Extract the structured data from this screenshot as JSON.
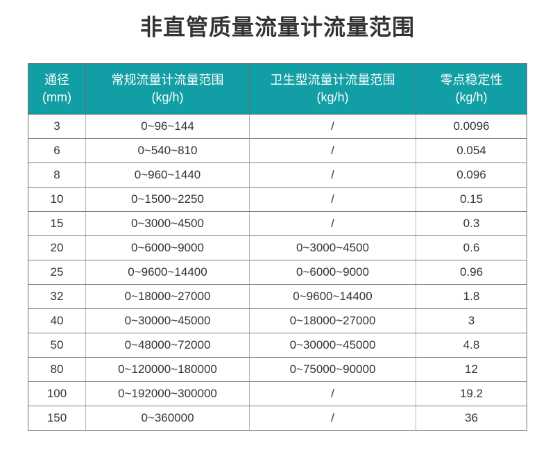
{
  "colors": {
    "header_bg": "#119EA4",
    "header_text": "#FFFFFF",
    "cell_text": "#333333",
    "title_text": "#333333",
    "border_dark": "#6E6E6E",
    "border_horizontal": "#7D7D7D",
    "border_vertical": "#B3B3B3",
    "page_bg": "#FFFFFF"
  },
  "chart_data": {
    "type": "table",
    "title": "非直管质量流量计流量范围",
    "columns": [
      {
        "line1": "通径",
        "line2": "(mm)"
      },
      {
        "line1": "常规流量计流量范围",
        "line2": "(kg/h)"
      },
      {
        "line1": "卫生型流量计流量范围",
        "line2": "(kg/h)"
      },
      {
        "line1": "零点稳定性",
        "line2": "(kg/h)"
      }
    ],
    "column_keys": [
      "diameter-mm",
      "standard-flow-range",
      "sanitary-flow-range",
      "zero-stability"
    ],
    "rows": [
      [
        "3",
        "0~96~144",
        "/",
        "0.0096"
      ],
      [
        "6",
        "0~540~810",
        "/",
        "0.054"
      ],
      [
        "8",
        "0~960~1440",
        "/",
        "0.096"
      ],
      [
        "10",
        "0~1500~2250",
        "/",
        "0.15"
      ],
      [
        "15",
        "0~3000~4500",
        "/",
        "0.3"
      ],
      [
        "20",
        "0~6000~9000",
        "0~3000~4500",
        "0.6"
      ],
      [
        "25",
        "0~9600~14400",
        "0~6000~9000",
        "0.96"
      ],
      [
        "32",
        "0~18000~27000",
        "0~9600~14400",
        "1.8"
      ],
      [
        "40",
        "0~30000~45000",
        "0~18000~27000",
        "3"
      ],
      [
        "50",
        "0~48000~72000",
        "0~30000~45000",
        "4.8"
      ],
      [
        "80",
        "0~120000~180000",
        "0~75000~90000",
        "12"
      ],
      [
        "100",
        "0~192000~300000",
        "/",
        "19.2"
      ],
      [
        "150",
        "0~360000",
        "/",
        "36"
      ]
    ]
  }
}
